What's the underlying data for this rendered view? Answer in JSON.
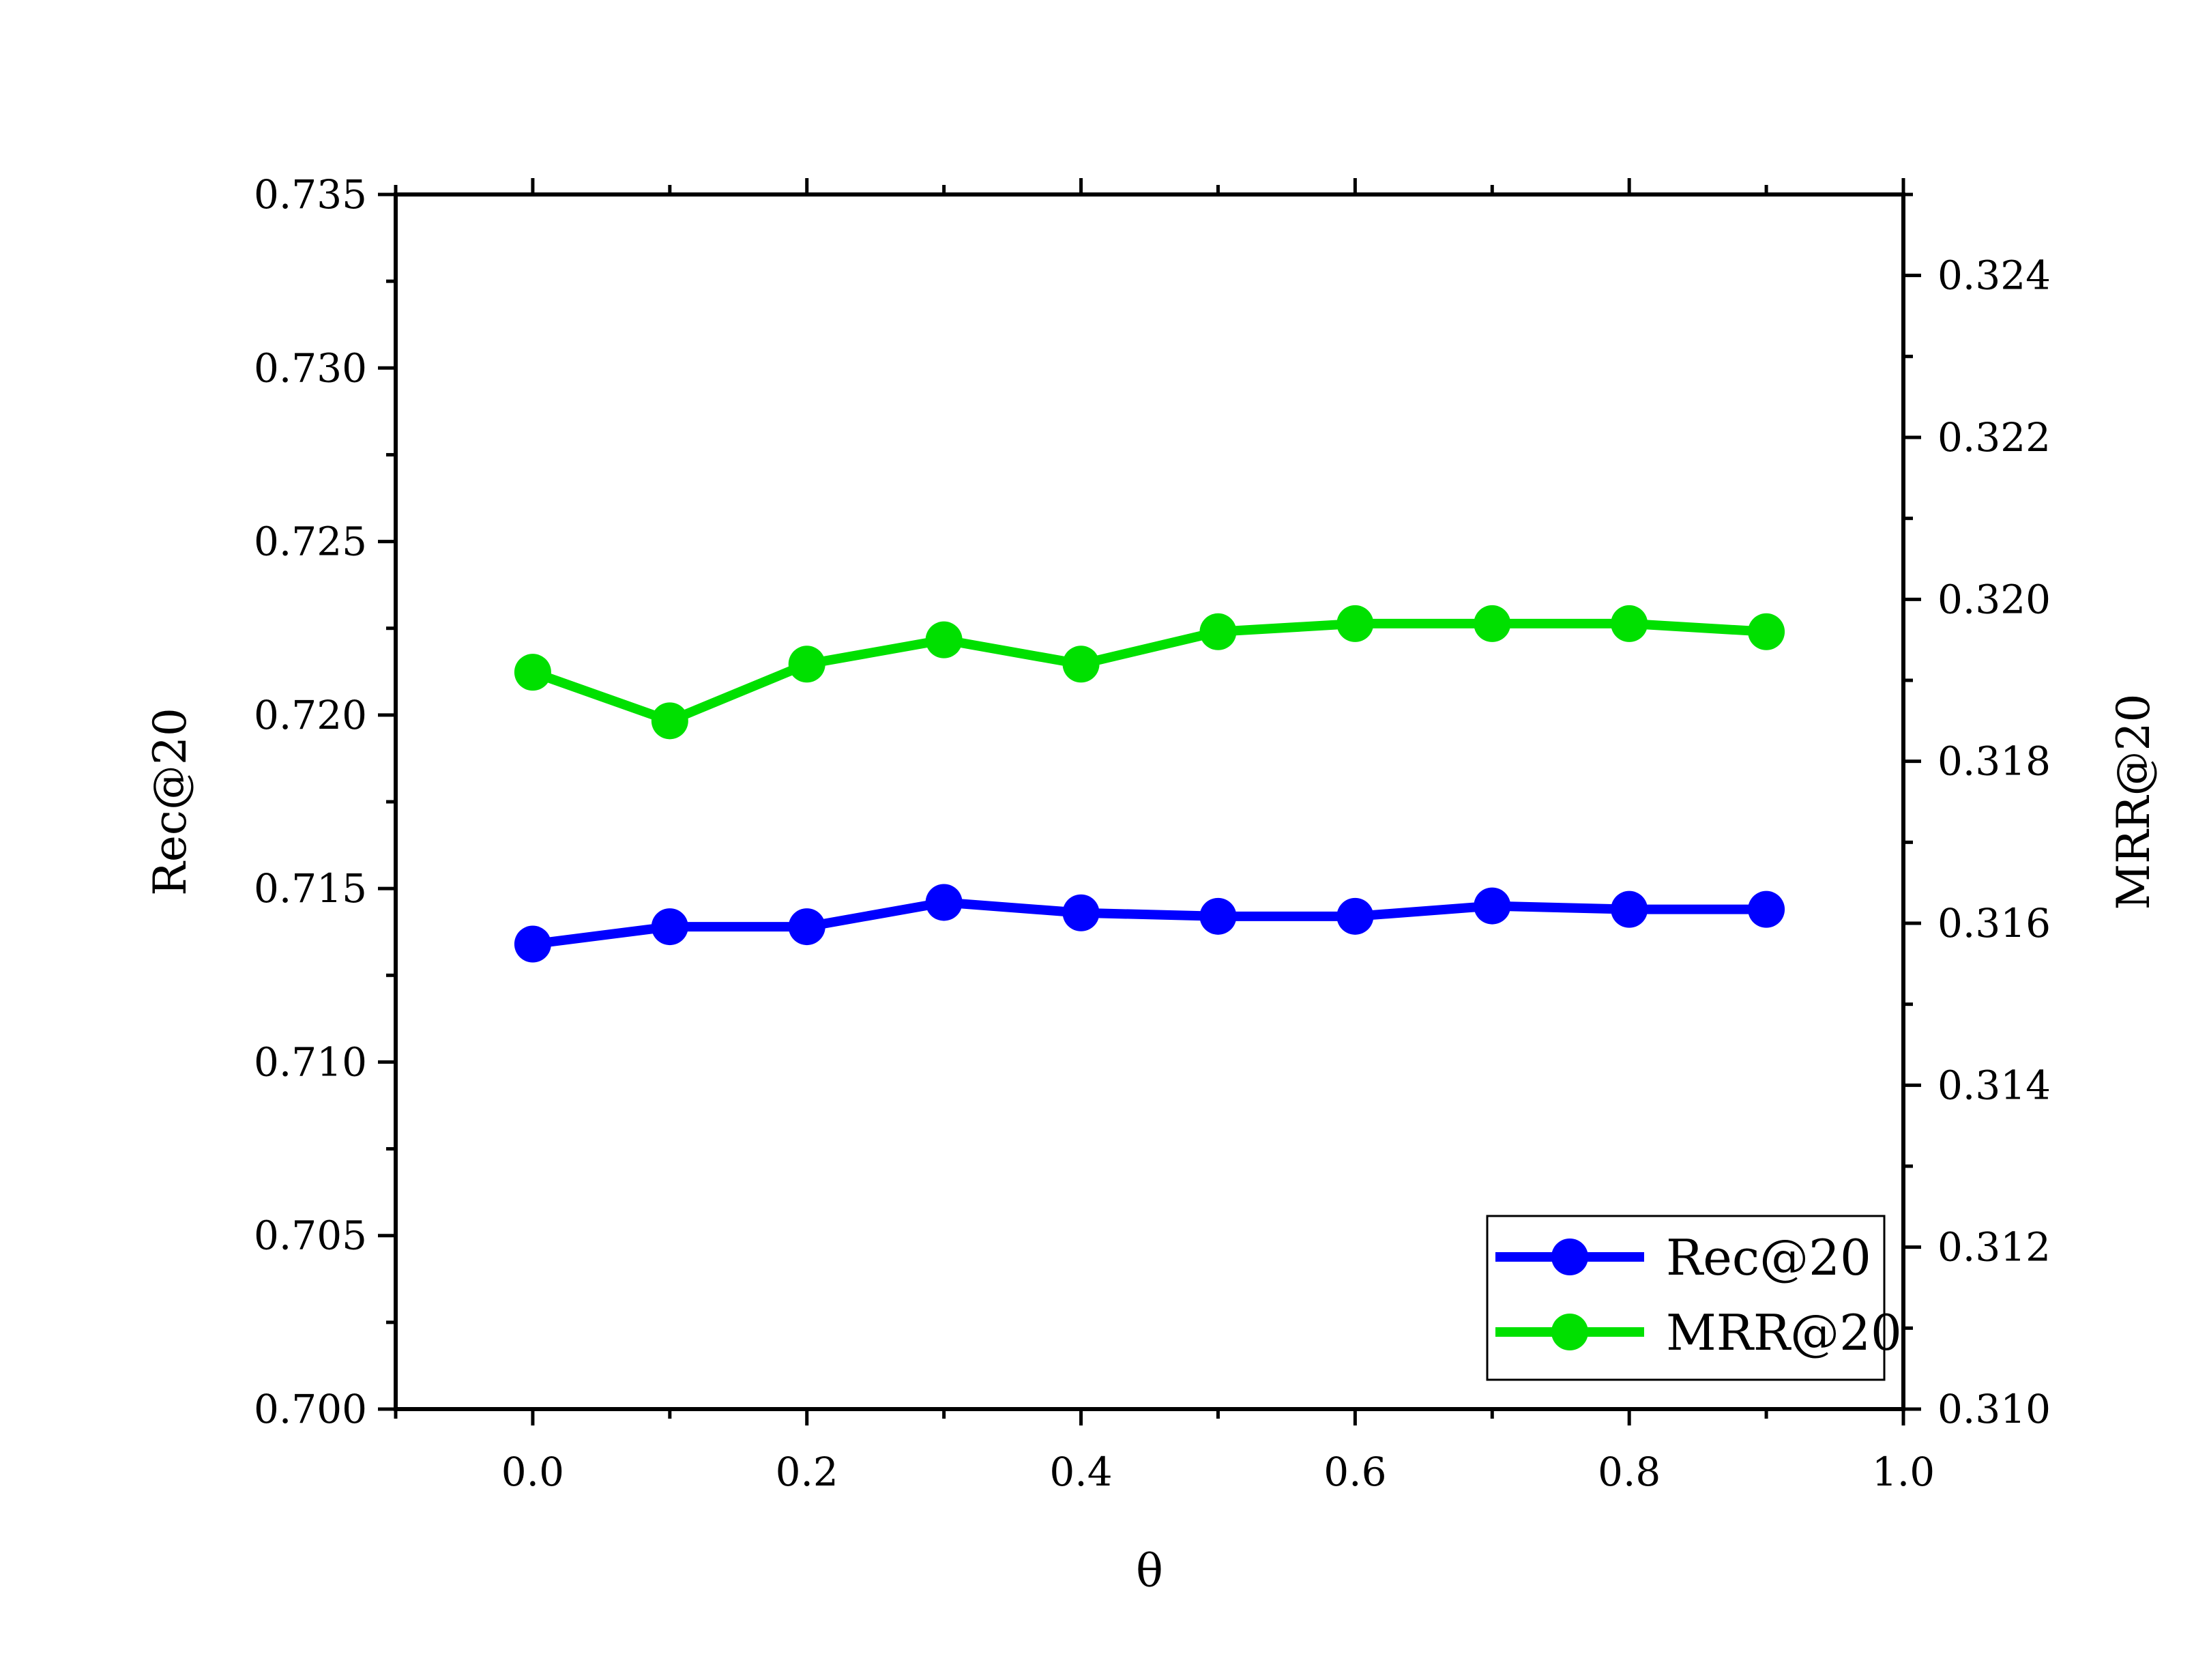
{
  "chart_data": {
    "type": "line",
    "title": "",
    "xlabel": "θ",
    "ylabel": "Rec@20",
    "y2label": "MRR@20",
    "xlim": [
      -0.1,
      1.0
    ],
    "ylim": [
      0.7,
      0.735
    ],
    "y2lim": [
      0.31,
      0.325
    ],
    "x_ticks": [
      0.0,
      0.2,
      0.4,
      0.6,
      0.8,
      1.0
    ],
    "x_tick_labels": [
      "0.0",
      "0.2",
      "0.4",
      "0.6",
      "0.8",
      "1.0"
    ],
    "y_ticks": [
      0.7,
      0.705,
      0.71,
      0.715,
      0.72,
      0.725,
      0.73,
      0.735
    ],
    "y_tick_labels": [
      "0.700",
      "0.705",
      "0.710",
      "0.715",
      "0.720",
      "0.725",
      "0.730",
      "0.735"
    ],
    "y2_ticks": [
      0.31,
      0.312,
      0.314,
      0.316,
      0.318,
      0.32,
      0.322,
      0.324
    ],
    "y2_tick_labels": [
      "0.310",
      "0.312",
      "0.314",
      "0.316",
      "0.318",
      "0.320",
      "0.322",
      "0.324"
    ],
    "grid": false,
    "legend_position": "bottom-right",
    "x": [
      0.0,
      0.1,
      0.2,
      0.3,
      0.4,
      0.5,
      0.6,
      0.7,
      0.8,
      0.9
    ],
    "series": [
      {
        "name": "Rec@20",
        "axis": "left",
        "color": "#0000ff",
        "marker": "circle",
        "values": [
          0.7134,
          0.7139,
          0.7139,
          0.7146,
          0.7143,
          0.7142,
          0.7142,
          0.7145,
          0.7144,
          0.7144
        ]
      },
      {
        "name": "MRR@20",
        "axis": "right",
        "color": "#00e000",
        "marker": "circle",
        "values": [
          0.3191,
          0.3185,
          0.3192,
          0.3195,
          0.3192,
          0.3196,
          0.3197,
          0.3197,
          0.3197,
          0.3196
        ]
      }
    ]
  }
}
